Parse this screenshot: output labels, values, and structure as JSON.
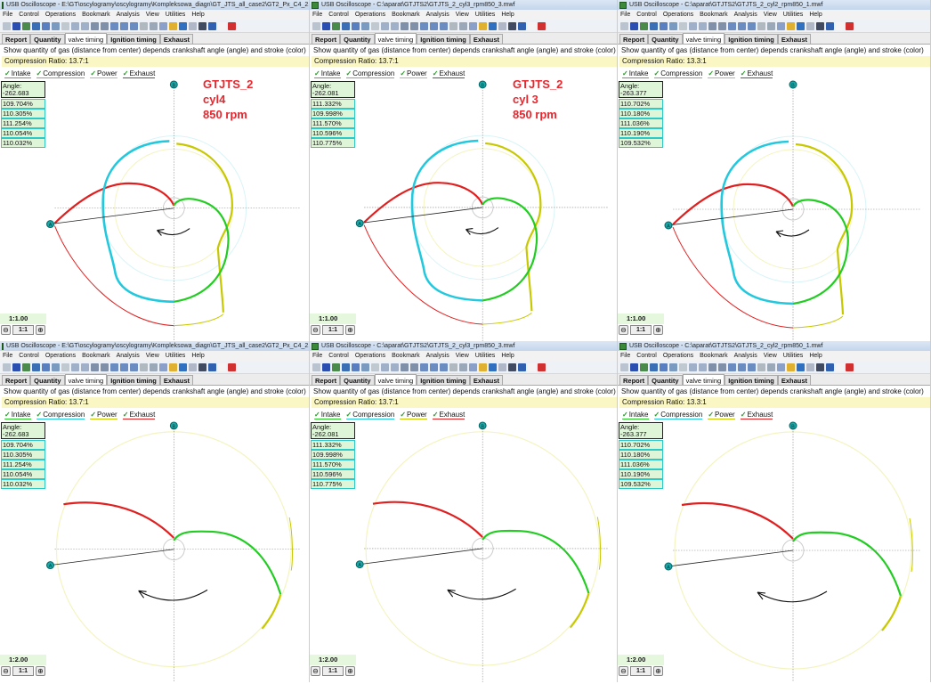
{
  "app": {
    "menu": [
      "File",
      "Control",
      "Operations",
      "Bookmark",
      "Analysis",
      "View",
      "Utilities",
      "Help"
    ],
    "tabs": [
      "Report",
      "Quantity",
      "valve timing",
      "Ignition timing",
      "Exhaust"
    ],
    "active_tab": "valve timing",
    "description": "Show quantity of gas (distance from center) depends crankshaft angle (angle) and stroke (color)",
    "legend": [
      {
        "label": "Intake",
        "color": "#22cc22",
        "checked": true
      },
      {
        "label": "Compression",
        "color": "#22c8dd",
        "checked": true
      },
      {
        "label": "Power",
        "color": "#c8c800",
        "checked": true
      },
      {
        "label": "Exhaust",
        "color": "#e02020",
        "checked": true
      }
    ],
    "zoom_reset_label": "1:1",
    "marker_top": "B",
    "marker_left": "A"
  },
  "panels": [
    {
      "title": "USB Oscilloscope - E:\\GT\\oscylogramy\\oscylogramy\\Kompleksowa_diagn\\GT_JTS_all_case2\\GT2_Px_C4_2.mwf",
      "compression_ratio": "Compression Ratio: 13.7:1",
      "angle_label": "Angle:",
      "angle": "-262.683",
      "values": [
        "109.704%",
        "110.305%",
        "111.254%",
        "110.054%",
        "110.032%"
      ],
      "scale": "1:1.00",
      "annotation": [
        "GTJTS_2",
        "cyl4",
        "850 rpm"
      ]
    },
    {
      "title": "USB Oscilloscope - C:\\aparat\\GTJTS2\\GTJTS_2_cyl3_rpm850_3.mwf",
      "compression_ratio": "Compression Ratio: 13.7:1",
      "angle_label": "Angle:",
      "angle": "-262.081",
      "values": [
        "111.332%",
        "109.998%",
        "111.570%",
        "110.596%",
        "110.775%"
      ],
      "scale": "1:1.00",
      "annotation": [
        "GTJTS_2",
        "cyl 3",
        "850 rpm"
      ]
    },
    {
      "title": "USB Oscilloscope - C:\\aparat\\GTJTS2\\GTJTS_2_cyl2_rpm850_1.mwf",
      "compression_ratio": "Compression Ratio: 13.3:1",
      "angle_label": "Angle:",
      "angle": "-263.377",
      "values": [
        "110.702%",
        "110.180%",
        "111.036%",
        "110.190%",
        "109.532%"
      ],
      "scale": "1:1.00",
      "annotation": []
    },
    {
      "title": "USB Oscilloscope - E:\\GT\\oscylogramy\\oscylogramy\\Kompleksowa_diagn\\GT_JTS_all_case2\\GT2_Px_C4_2.mwf",
      "compression_ratio": "Compression Ratio: 13.7:1",
      "angle_label": "Angle:",
      "angle": "-262.683",
      "values": [
        "109.704%",
        "110.305%",
        "111.254%",
        "110.054%",
        "110.032%"
      ],
      "scale": "1:2.00",
      "annotation": []
    },
    {
      "title": "USB Oscilloscope - C:\\aparat\\GTJTS2\\GTJTS_2_cyl3_rpm850_3.mwf",
      "compression_ratio": "Compression Ratio: 13.7:1",
      "angle_label": "Angle:",
      "angle": "-262.081",
      "values": [
        "111.332%",
        "109.998%",
        "111.570%",
        "110.596%",
        "110.775%"
      ],
      "scale": "1:2.00",
      "annotation": []
    },
    {
      "title": "USB Oscilloscope - C:\\aparat\\GTJTS2\\GTJTS_2_cyl2_rpm850_1.mwf",
      "compression_ratio": "Compression Ratio: 13.3:1",
      "angle_label": "Angle:",
      "angle": "-263.377",
      "values": [
        "110.702%",
        "110.180%",
        "111.036%",
        "110.190%",
        "109.532%"
      ],
      "scale": "1:2.00",
      "annotation": []
    }
  ]
}
